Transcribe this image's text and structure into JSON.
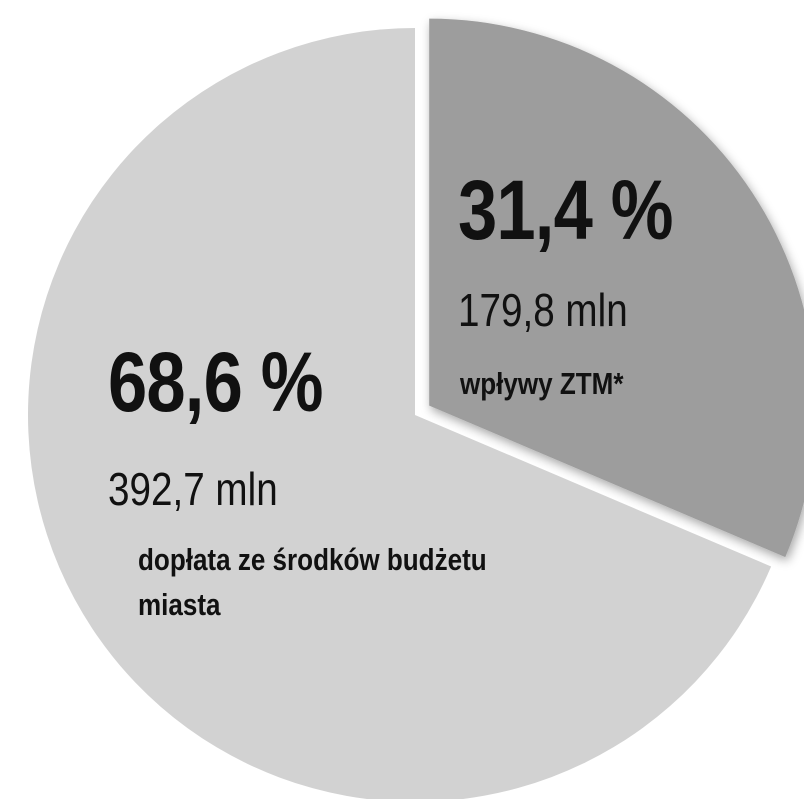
{
  "chart_data": {
    "type": "pie",
    "categories": [
      "wpływy ZTM*",
      "dopłata ze środków budżetu miasta"
    ],
    "values": [
      31.4,
      68.6
    ],
    "value_labels": [
      "31,4 %",
      "68,6 %"
    ],
    "amount_labels": [
      "179,8 mln",
      "392,7 mln"
    ],
    "colors": [
      "#9d9d9d",
      "#d2d2d2"
    ],
    "explode": [
      true,
      false
    ]
  }
}
